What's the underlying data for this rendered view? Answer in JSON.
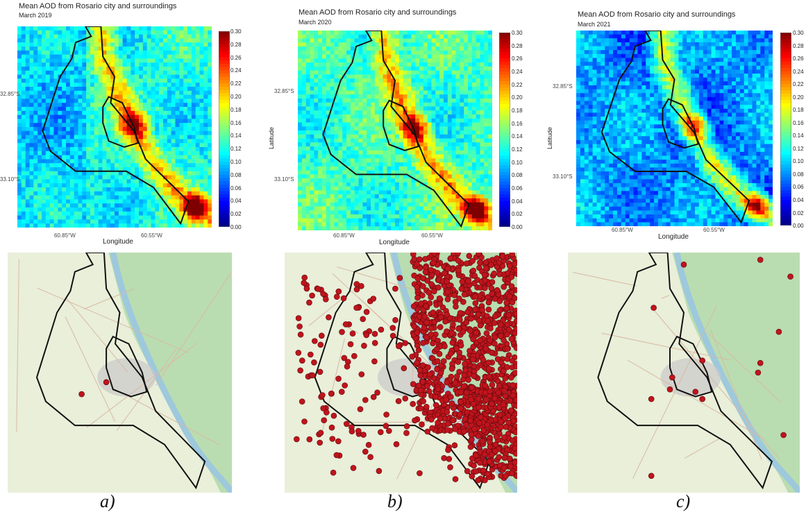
{
  "panels": [
    {
      "title": "Mean AOD from Rosario city and surroundings",
      "subtitle": "March 2019",
      "year": 2019,
      "xlabel": "Longitude",
      "ylabel": "",
      "xticks": [
        "60.85°W",
        "60.55°W"
      ],
      "yticks": [
        "32.85°S",
        "33.10°S"
      ],
      "colorbar_ticks": [
        "0.30",
        "0.28",
        "0.26",
        "0.24",
        "0.22",
        "0.20",
        "0.18",
        "0.16",
        "0.14",
        "0.12",
        "0.10",
        "0.08",
        "0.06",
        "0.04",
        "0.02",
        "0.00"
      ],
      "caption": "a)"
    },
    {
      "title": "Mean AOD from Rosario city and surroundings",
      "subtitle": "March 2020",
      "year": 2020,
      "xlabel": "Longitude",
      "ylabel": "Latitude",
      "xticks": [
        "60.85°W",
        "60.55°W"
      ],
      "yticks": [
        "32.85°S",
        "33.10°S"
      ],
      "colorbar_ticks": [
        "0.30",
        "0.28",
        "0.26",
        "0.24",
        "0.22",
        "0.20",
        "0.18",
        "0.16",
        "0.14",
        "0.12",
        "0.10",
        "0.08",
        "0.06",
        "0.04",
        "0.02",
        "0.00"
      ],
      "caption": "b)"
    },
    {
      "title": "Mean AOD from Rosario city and surroundings",
      "subtitle": "March 2021",
      "year": 2021,
      "xlabel": "Longitude",
      "ylabel": "Latitude",
      "xticks": [
        "60.85°W",
        "60.55°W"
      ],
      "yticks": [
        "32.85°S",
        "33.10°S"
      ],
      "colorbar_ticks": [
        "0.30",
        "0.28",
        "0.26",
        "0.24",
        "0.22",
        "0.20",
        "0.18",
        "0.16",
        "0.14",
        "0.12",
        "0.10",
        "0.08",
        "0.06",
        "0.04",
        "0.02",
        "0.00"
      ],
      "caption": "c)"
    }
  ],
  "chart_data": [
    {
      "type": "heatmap",
      "title": "Mean AOD from Rosario city and surroundings",
      "subtitle": "March 2019",
      "xlabel": "Longitude",
      "ylabel": "",
      "colorbar_range": [
        0.0,
        0.3
      ],
      "colorscale": [
        "#00007f",
        "#0000ff",
        "#0080ff",
        "#00ffff",
        "#7fff7f",
        "#ffff00",
        "#ff8000",
        "#ff0000",
        "#7f0000"
      ],
      "typical_value": 0.12,
      "hotspot_max": 0.3
    },
    {
      "type": "heatmap",
      "title": "Mean AOD from Rosario city and surroundings",
      "subtitle": "March 2020",
      "xlabel": "Longitude",
      "ylabel": "Latitude",
      "colorbar_range": [
        0.0,
        0.3
      ],
      "colorscale": [
        "#00007f",
        "#0000ff",
        "#0080ff",
        "#00ffff",
        "#7fff7f",
        "#ffff00",
        "#ff8000",
        "#ff0000",
        "#7f0000"
      ],
      "typical_value": 0.13,
      "hotspot_max": 0.3
    },
    {
      "type": "heatmap",
      "title": "Mean AOD from Rosario city and surroundings",
      "subtitle": "March 2021",
      "xlabel": "Longitude",
      "ylabel": "Latitude",
      "colorbar_range": [
        0.0,
        0.3
      ],
      "colorscale": [
        "#00007f",
        "#0000ff",
        "#0080ff",
        "#00ffff",
        "#7fff7f",
        "#ffff00",
        "#ff8000",
        "#ff0000",
        "#7f0000"
      ],
      "typical_value": 0.09,
      "hotspot_max": 0.3
    }
  ],
  "map_colors": {
    "land": "#e9efd9",
    "wetland": "#b9ddb0",
    "urban": "#c9c9c9",
    "river": "#9ec8dc",
    "outline": "#111111",
    "fire_point": "#c0141c"
  }
}
